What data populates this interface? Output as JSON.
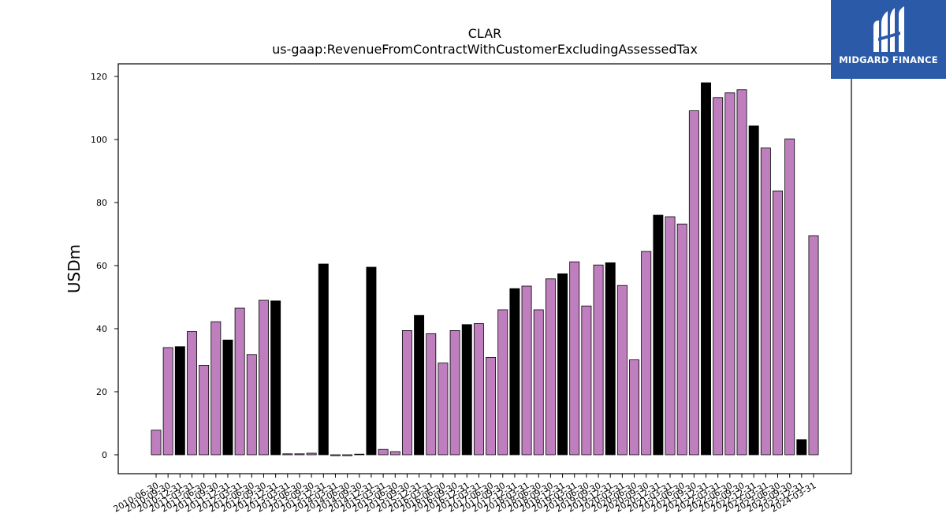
{
  "chart_data": {
    "type": "bar",
    "title": "CLAR",
    "subtitle": "us-gaap:RevenueFromContractWithCustomerExcludingAssessedTax",
    "xlabel": "",
    "ylabel": "USDm",
    "ylim": [
      -6,
      124
    ],
    "yticks": [
      0,
      20,
      40,
      60,
      80,
      100,
      120
    ],
    "grid": false,
    "colors": {
      "quarter": "#bf7fbf",
      "annual": "#000000",
      "edge": "#000000"
    },
    "categories": [
      "2010-06-30",
      "2010-09-30",
      "2010-12-31",
      "2011-03-31",
      "2011-06-30",
      "2011-09-30",
      "2011-12-31",
      "2012-03-31",
      "2012-06-30",
      "2012-09-30",
      "2012-12-31",
      "2013-03-31",
      "2013-06-30",
      "2013-09-30",
      "2013-12-31",
      "2014-03-31",
      "2014-06-30",
      "2014-09-30",
      "2014-12-31",
      "2015-03-31",
      "2015-06-30",
      "2015-09-30",
      "2015-12-31",
      "2016-03-31",
      "2016-06-30",
      "2016-09-30",
      "2016-12-31",
      "2017-03-31",
      "2017-06-30",
      "2017-09-30",
      "2017-12-31",
      "2018-03-31",
      "2018-06-30",
      "2018-09-30",
      "2018-12-31",
      "2019-03-31",
      "2019-06-30",
      "2019-09-30",
      "2019-12-31",
      "2020-03-31",
      "2020-06-30",
      "2020-09-30",
      "2020-12-31",
      "2021-03-31",
      "2021-06-30",
      "2021-09-30",
      "2021-12-31",
      "2022-03-31",
      "2022-06-30",
      "2022-09-30",
      "2022-12-31",
      "2023-03-31",
      "2023-06-30",
      "2023-09-30",
      "2023-12-31",
      "2024-03-31"
    ],
    "series": [
      {
        "values": [
          7.8,
          34.0,
          34.3,
          39.1,
          28.4,
          42.2,
          36.4,
          46.5,
          31.8,
          49.0,
          48.8,
          0.3,
          0.3,
          0.5,
          60.5,
          -0.3,
          -0.3,
          0.2,
          59.5,
          1.7,
          1.0,
          39.4,
          44.2,
          38.4,
          29.1,
          39.4,
          41.3,
          41.6,
          30.9,
          46.0,
          52.7,
          53.5,
          46.0,
          55.8,
          57.4,
          61.2,
          47.2,
          60.2,
          60.9,
          53.7,
          30.1,
          64.5,
          76.0,
          75.5,
          73.2,
          109.1,
          118.0,
          113.3,
          114.8,
          115.8,
          104.3,
          97.3,
          83.7,
          100.2,
          4.8,
          69.5
        ],
        "annual_flags": [
          0,
          0,
          1,
          0,
          0,
          0,
          1,
          0,
          0,
          0,
          1,
          0,
          0,
          0,
          1,
          0,
          0,
          0,
          1,
          0,
          0,
          0,
          1,
          0,
          0,
          0,
          1,
          0,
          0,
          0,
          1,
          0,
          0,
          0,
          1,
          0,
          0,
          0,
          1,
          0,
          0,
          0,
          1,
          0,
          0,
          0,
          1,
          0,
          0,
          0,
          1,
          0,
          0,
          0,
          1,
          0
        ]
      }
    ]
  },
  "logo": {
    "text": "MIDGARD FINANCE",
    "background": "#2a5aa8"
  }
}
